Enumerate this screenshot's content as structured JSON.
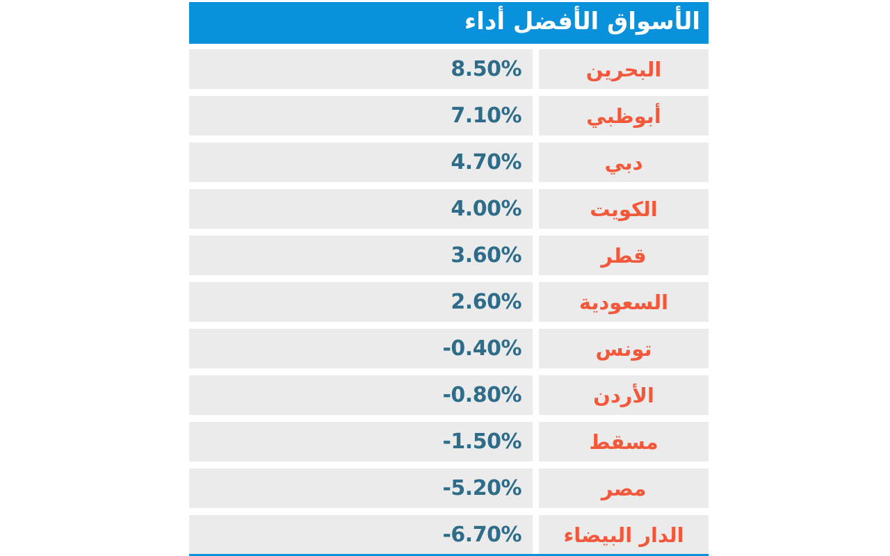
{
  "header": {
    "title": "الأسواق الأفضل أداء"
  },
  "table": {
    "rows": [
      {
        "market": "البحرين",
        "change": "8.50%"
      },
      {
        "market": "أبوظبي",
        "change": "7.10%"
      },
      {
        "market": "دبي",
        "change": "4.70%"
      },
      {
        "market": "الكويت",
        "change": "4.00%"
      },
      {
        "market": "قطر",
        "change": "3.60%"
      },
      {
        "market": "السعودية",
        "change": "2.60%"
      },
      {
        "market": "تونس",
        "change": "-0.40%"
      },
      {
        "market": "الأردن",
        "change": "-0.80%"
      },
      {
        "market": "مسقط",
        "change": "-1.50%"
      },
      {
        "market": "مصر",
        "change": "-5.20%"
      },
      {
        "market": "الدار البيضاء",
        "change": "-6.70%"
      }
    ]
  },
  "colors": {
    "header_bg": "#0991DC",
    "row_bg": "#EBEBEB",
    "value_text": "#2E6C8A",
    "market_text": "#F4583A",
    "accent_line": "#0991DC"
  },
  "chart_data": {
    "type": "table",
    "title": "الأسواق الأفضل أداء",
    "categories": [
      "البحرين",
      "أبوظبي",
      "دبي",
      "الكويت",
      "قطر",
      "السعودية",
      "تونس",
      "الأردن",
      "مسقط",
      "مصر",
      "الدار البيضاء"
    ],
    "values": [
      8.5,
      7.1,
      4.7,
      4.0,
      3.6,
      2.6,
      -0.4,
      -0.8,
      -1.5,
      -5.2,
      -6.7
    ],
    "unit": "%",
    "layout": "two-column rows: percentage change (left, right-aligned) and market name (right, centered), blue title bar on top, blue accent line at bottom"
  }
}
